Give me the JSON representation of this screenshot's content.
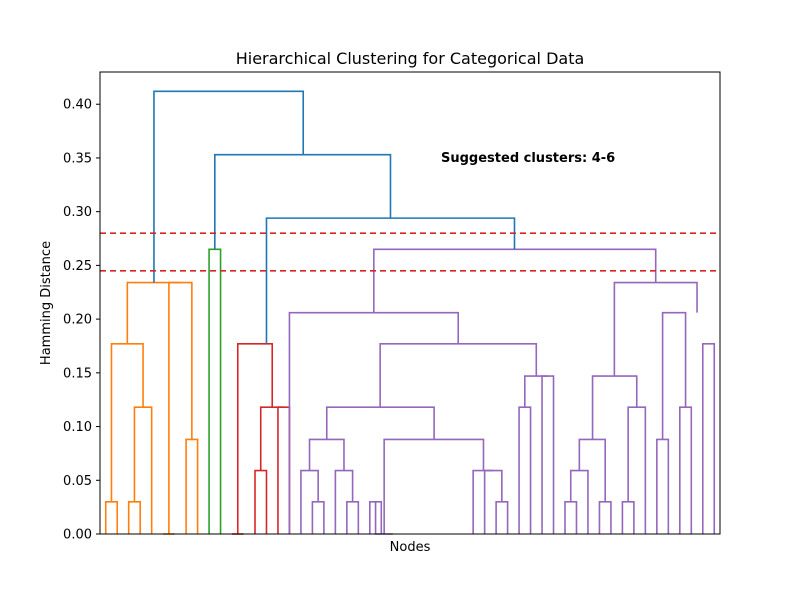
{
  "chart_data": {
    "type": "dendrogram",
    "title": "Hierarchical Clustering for Categorical Data",
    "xlabel": "Nodes",
    "ylabel": "Hamming Distance",
    "ylim": [
      0,
      0.43
    ],
    "yticks": [
      "0.00",
      "0.05",
      "0.10",
      "0.15",
      "0.20",
      "0.25",
      "0.30",
      "0.35",
      "0.40"
    ],
    "ytick_values": [
      0,
      0.05,
      0.1,
      0.15,
      0.2,
      0.25,
      0.3,
      0.35,
      0.4
    ],
    "grid": false,
    "annotation": "Suggested clusters: 4-6",
    "threshold_lines": [
      {
        "y": 0.28,
        "color": "#d62728",
        "style": "dashed"
      },
      {
        "y": 0.245,
        "color": "#d62728",
        "style": "dashed"
      }
    ],
    "colors": {
      "orange": "#ff7f0e",
      "green": "#2ca02c",
      "red": "#d62728",
      "purple": "#9467bd",
      "blue": "#1f77b4"
    },
    "links": [
      {
        "color": "orange",
        "left": [
          0,
          0,
          0
        ],
        "right": [
          1,
          0,
          0
        ],
        "height": 0.03
      },
      {
        "color": "orange",
        "left": [
          2,
          0,
          0
        ],
        "right": [
          3,
          0,
          0
        ],
        "height": 0.03
      },
      {
        "color": "orange",
        "left": [
          4,
          0,
          0
        ],
        "right": [
          2.5,
          0.03,
          0.03
        ],
        "height": 0.118
      },
      {
        "color": "orange",
        "left": [
          0.5,
          0.03,
          0.03
        ],
        "right": [
          3.25,
          0.118,
          0.118
        ],
        "height": 0.177
      },
      {
        "color": "orange",
        "left": [
          5,
          0,
          0
        ],
        "right": [
          6,
          0,
          0
        ],
        "height": 0.0
      },
      {
        "color": "orange",
        "left": [
          7,
          0,
          0
        ],
        "right": [
          8,
          0,
          0
        ],
        "height": 0.088
      },
      {
        "color": "orange",
        "left": [
          5.5,
          0,
          0
        ],
        "right": [
          7.5,
          0.088,
          0.088
        ],
        "height": 0.234
      },
      {
        "color": "orange",
        "left": [
          1.88,
          0.177,
          0.177
        ],
        "right": [
          6.5,
          0.234,
          0.234
        ],
        "height": 0.234
      },
      {
        "color": "green",
        "left": [
          9,
          0,
          0
        ],
        "right": [
          10,
          0,
          0
        ],
        "height": 0.265
      },
      {
        "color": "red",
        "left": [
          11,
          0,
          0
        ],
        "right": [
          12,
          0,
          0
        ],
        "height": 0.0
      },
      {
        "color": "red",
        "left": [
          13,
          0,
          0
        ],
        "right": [
          14,
          0,
          0
        ],
        "height": 0.059
      },
      {
        "color": "red",
        "left": [
          15,
          0,
          0
        ],
        "right": [
          16,
          0,
          0
        ],
        "height": 0.118
      },
      {
        "color": "red",
        "left": [
          13.5,
          0.059,
          0.059
        ],
        "right": [
          15.5,
          0.118,
          0.118
        ],
        "height": 0.118
      },
      {
        "color": "red",
        "left": [
          11.5,
          0,
          0
        ],
        "right": [
          14.5,
          0.118,
          0.118
        ],
        "height": 0.177
      },
      {
        "color": "purple",
        "left": [
          18,
          0,
          0
        ],
        "right": [
          19,
          0,
          0
        ],
        "height": 0.03
      },
      {
        "color": "purple",
        "left": [
          17,
          0,
          0
        ],
        "right": [
          18.5,
          0.03,
          0.03
        ],
        "height": 0.059
      },
      {
        "color": "purple",
        "left": [
          21,
          0,
          0
        ],
        "right": [
          22,
          0,
          0
        ],
        "height": 0.03
      },
      {
        "color": "purple",
        "left": [
          20,
          0,
          0
        ],
        "right": [
          21.5,
          0.03,
          0.03
        ],
        "height": 0.059
      },
      {
        "color": "purple",
        "left": [
          17.75,
          0.059,
          0.059
        ],
        "right": [
          20.75,
          0.059,
          0.059
        ],
        "height": 0.088
      },
      {
        "color": "purple",
        "left": [
          23,
          0,
          0
        ],
        "right": [
          24,
          0,
          0
        ],
        "height": 0.03
      },
      {
        "color": "purple",
        "left": [
          23.5,
          0.03,
          0.03
        ],
        "right": [
          25,
          0,
          0
        ],
        "height": 0.0
      },
      {
        "color": "purple",
        "left": [
          34,
          0,
          0
        ],
        "right": [
          35,
          0,
          0
        ],
        "height": 0.03
      },
      {
        "color": "purple",
        "left": [
          33,
          0,
          0
        ],
        "right": [
          34.5,
          0.03,
          0.03
        ],
        "height": 0.059
      },
      {
        "color": "purple",
        "left": [
          32,
          0,
          0
        ],
        "right": [
          33.75,
          0.059,
          0.059
        ],
        "height": 0.059
      },
      {
        "color": "purple",
        "left": [
          24.25,
          0,
          0
        ],
        "right": [
          32.9,
          0.059,
          0.059
        ],
        "height": 0.088
      },
      {
        "color": "purple",
        "left": [
          19.25,
          0.088,
          0.088
        ],
        "right": [
          28.6,
          0.088,
          0.088
        ],
        "height": 0.118
      },
      {
        "color": "purple",
        "left": [
          36,
          0,
          0
        ],
        "right": [
          37,
          0,
          0
        ],
        "height": 0.118
      },
      {
        "color": "purple",
        "left": [
          38,
          0,
          0
        ],
        "right": [
          39,
          0,
          0
        ],
        "height": 0.147
      },
      {
        "color": "purple",
        "left": [
          36.5,
          0.118,
          0.118
        ],
        "right": [
          38.5,
          0.147,
          0.147
        ],
        "height": 0.147
      },
      {
        "color": "purple",
        "left": [
          23.9,
          0.118,
          0.118
        ],
        "right": [
          37.5,
          0.147,
          0.147
        ],
        "height": 0.177
      },
      {
        "color": "purple",
        "left": [
          16,
          0,
          0
        ],
        "right": [
          30.7,
          0.177,
          0.177
        ],
        "height": 0.206
      },
      {
        "color": "purple",
        "left": [
          40,
          0,
          0
        ],
        "right": [
          41,
          0,
          0
        ],
        "height": 0.03
      },
      {
        "color": "purple",
        "left": [
          40.5,
          0.03,
          0.03
        ],
        "right": [
          42,
          0,
          0
        ],
        "height": 0.059
      },
      {
        "color": "purple",
        "left": [
          43,
          0,
          0
        ],
        "right": [
          44,
          0,
          0
        ],
        "height": 0.03
      },
      {
        "color": "purple",
        "left": [
          41.25,
          0.059,
          0.059
        ],
        "right": [
          43.5,
          0.03,
          0.03
        ],
        "height": 0.088
      },
      {
        "color": "purple",
        "left": [
          45,
          0,
          0
        ],
        "right": [
          46,
          0,
          0
        ],
        "height": 0.03
      },
      {
        "color": "purple",
        "left": [
          45.5,
          0.03,
          0.03
        ],
        "right": [
          47,
          0,
          0
        ],
        "height": 0.118
      },
      {
        "color": "purple",
        "left": [
          42.4,
          0.088,
          0.088
        ],
        "right": [
          46.25,
          0.118,
          0.118
        ],
        "height": 0.147
      },
      {
        "color": "purple",
        "left": [
          48,
          0,
          0
        ],
        "right": [
          49,
          0,
          0
        ],
        "height": 0.088
      },
      {
        "color": "purple",
        "left": [
          50,
          0,
          0
        ],
        "right": [
          51,
          0,
          0
        ],
        "height": 0.118
      },
      {
        "color": "purple",
        "left": [
          52,
          0,
          0
        ],
        "right": [
          53,
          0,
          0
        ],
        "height": 0.177
      },
      {
        "color": "purple",
        "left": [
          48.5,
          0.088,
          0.088
        ],
        "right": [
          50.5,
          0.118,
          0.118
        ],
        "height": 0.206
      },
      {
        "color": "purple",
        "left": [
          44.3,
          0.147,
          0.147
        ],
        "right": [
          51.5,
          0.206,
          0.206
        ],
        "height": 0.234
      },
      {
        "color": "purple",
        "left": [
          23.35,
          0.206,
          0.206
        ],
        "right": [
          47.9,
          0.234,
          0.234
        ],
        "height": 0.265
      },
      {
        "color": "blue",
        "left": [
          14,
          0.177,
          0.177
        ],
        "right": [
          35.6,
          0.265,
          0.265
        ],
        "height": 0.294
      },
      {
        "color": "blue",
        "left": [
          9.5,
          0.265,
          0.265
        ],
        "right": [
          24.8,
          0.294,
          0.294
        ],
        "height": 0.353
      },
      {
        "color": "blue",
        "left": [
          4.2,
          0.234,
          0.234
        ],
        "right": [
          17.2,
          0.353,
          0.353
        ],
        "height": 0.412
      }
    ]
  }
}
